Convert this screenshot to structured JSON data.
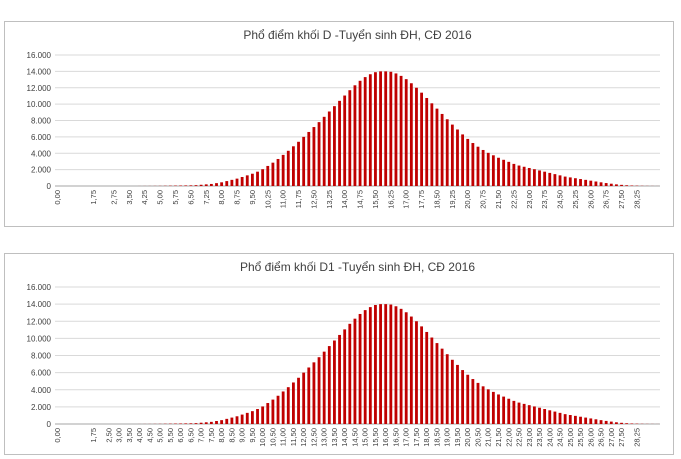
{
  "chart_data": [
    {
      "type": "bar",
      "title": "Phổ điểm khối D -Tuyển sinh ĐH, CĐ 2016",
      "color": "#c00000",
      "ylim": [
        0,
        16000
      ],
      "yticks": [
        "0",
        "2.000",
        "4.000",
        "6.000",
        "8.000",
        "10.000",
        "12.000",
        "14.000",
        "16.000"
      ],
      "xticklabels": [
        "0,00",
        "1,75",
        "2,75",
        "3,50",
        "4,25",
        "5,00",
        "5,75",
        "6,50",
        "7,25",
        "8,00",
        "8,75",
        "9,50",
        "10,25",
        "11,00",
        "11,75",
        "12,50",
        "13,25",
        "14,00",
        "14,75",
        "15,50",
        "16,25",
        "17,00",
        "17,75",
        "18,50",
        "19,25",
        "20,00",
        "20,75",
        "21,50",
        "22,25",
        "23,00",
        "23,75",
        "24,50",
        "25,25",
        "26,00",
        "26,75",
        "27,50",
        "28,25"
      ],
      "x_start": 0,
      "x_step": 0.25,
      "values": [
        0,
        0,
        0,
        0,
        0,
        0,
        0,
        0,
        0,
        0,
        0,
        0,
        0,
        0,
        0,
        0,
        5,
        8,
        10,
        15,
        20,
        30,
        40,
        50,
        60,
        70,
        80,
        100,
        150,
        200,
        250,
        350,
        450,
        600,
        750,
        900,
        1100,
        1300,
        1500,
        1750,
        2050,
        2450,
        2850,
        3300,
        3800,
        4300,
        4850,
        5400,
        6000,
        6600,
        7200,
        7800,
        8450,
        9100,
        9750,
        10400,
        11050,
        11700,
        12300,
        12850,
        13300,
        13650,
        13900,
        14000,
        14000,
        13950,
        13750,
        13450,
        13050,
        12550,
        12000,
        11400,
        10750,
        10100,
        9450,
        8800,
        8150,
        7500,
        6900,
        6300,
        5750,
        5250,
        4800,
        4400,
        4050,
        3750,
        3450,
        3200,
        2950,
        2700,
        2500,
        2350,
        2200,
        2050,
        1900,
        1750,
        1600,
        1450,
        1300,
        1150,
        1050,
        950,
        850,
        750,
        650,
        550,
        450,
        360,
        280,
        200,
        140,
        90,
        60,
        40,
        25,
        15,
        10,
        5
      ]
    },
    {
      "type": "bar",
      "title": "Phổ điểm khối D1 -Tuyển sinh ĐH, CĐ 2016",
      "color": "#c00000",
      "ylim": [
        0,
        16000
      ],
      "yticks": [
        "0",
        "2.000",
        "4.000",
        "6.000",
        "8.000",
        "10.000",
        "12.000",
        "14.000",
        "16.000"
      ],
      "xticklabels": [
        "0,00",
        "1,75",
        "2,50",
        "3,00",
        "3,50",
        "4,00",
        "4,50",
        "5,00",
        "5,50",
        "6,00",
        "6,50",
        "7,00",
        "7,50",
        "8,00",
        "8,50",
        "9,00",
        "9,50",
        "10,00",
        "10,50",
        "11,00",
        "11,50",
        "12,00",
        "12,50",
        "13,00",
        "13,50",
        "14,00",
        "14,50",
        "15,00",
        "15,50",
        "16,00",
        "16,50",
        "17,00",
        "17,50",
        "18,00",
        "18,50",
        "19,00",
        "19,50",
        "20,00",
        "20,50",
        "21,00",
        "21,50",
        "22,00",
        "22,50",
        "23,00",
        "23,50",
        "24,00",
        "24,50",
        "25,00",
        "25,50",
        "26,00",
        "26,50",
        "27,00",
        "27,50",
        "28,25"
      ],
      "x_start": 0,
      "x_step": 0.25,
      "values": [
        0,
        0,
        0,
        0,
        0,
        0,
        0,
        0,
        0,
        0,
        0,
        0,
        0,
        0,
        0,
        0,
        5,
        8,
        10,
        15,
        20,
        30,
        40,
        50,
        60,
        70,
        80,
        100,
        150,
        200,
        250,
        350,
        450,
        600,
        750,
        900,
        1100,
        1300,
        1500,
        1750,
        2050,
        2450,
        2850,
        3300,
        3800,
        4300,
        4850,
        5400,
        6000,
        6600,
        7200,
        7800,
        8450,
        9100,
        9750,
        10400,
        11050,
        11700,
        12300,
        12850,
        13300,
        13650,
        13900,
        14000,
        14000,
        13950,
        13750,
        13450,
        13050,
        12550,
        12000,
        11400,
        10750,
        10100,
        9450,
        8800,
        8150,
        7500,
        6900,
        6300,
        5750,
        5250,
        4800,
        4400,
        4050,
        3750,
        3450,
        3200,
        2950,
        2700,
        2500,
        2350,
        2200,
        2050,
        1900,
        1750,
        1600,
        1450,
        1300,
        1150,
        1050,
        950,
        850,
        750,
        650,
        550,
        450,
        360,
        280,
        200,
        140,
        90,
        60,
        40,
        25,
        15,
        10,
        5
      ]
    }
  ]
}
